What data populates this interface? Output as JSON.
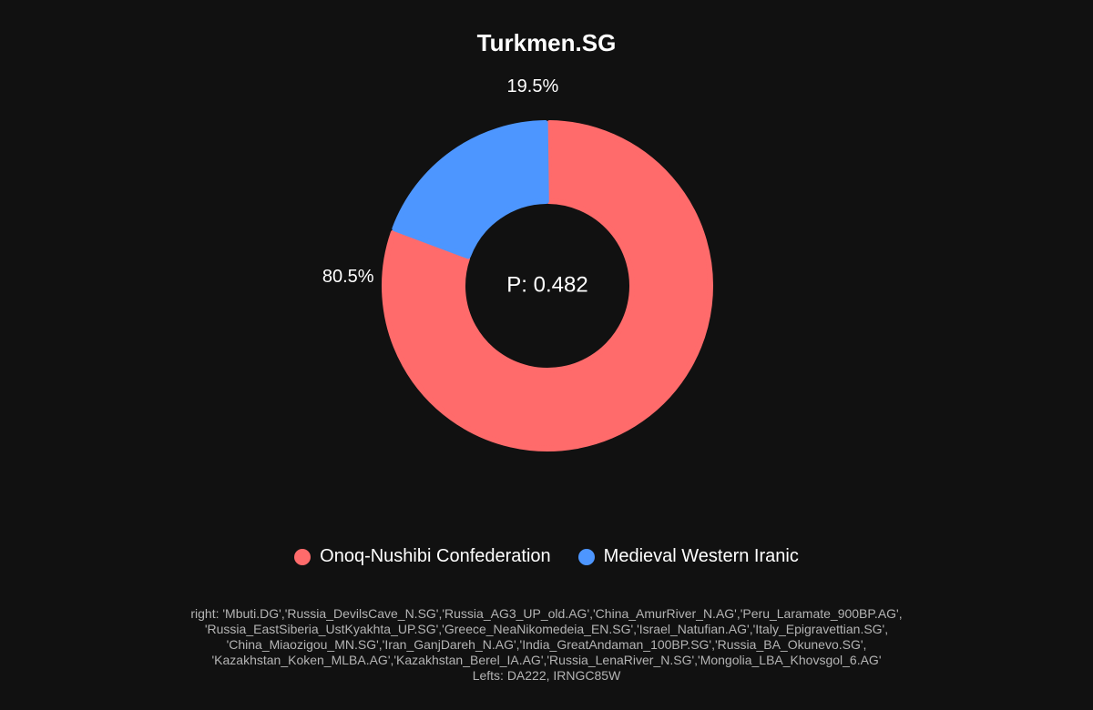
{
  "chart_data": {
    "type": "pie",
    "title": "Turkmen.SG",
    "center_label": "P: 0.482",
    "categories": [
      "Onoq-Nushibi Confederation",
      "Medieval Western Iranic"
    ],
    "values": [
      80.5,
      19.5
    ],
    "value_labels": [
      "80.5%",
      "19.5%"
    ],
    "colors": [
      "#ff6b6b",
      "#4d96ff"
    ],
    "legend_position": "bottom"
  },
  "footnote": {
    "lines": [
      "right: 'Mbuti.DG','Russia_DevilsCave_N.SG','Russia_AG3_UP_old.AG','China_AmurRiver_N.AG','Peru_Laramate_900BP.AG',",
      "'Russia_EastSiberia_UstKyakhta_UP.SG','Greece_NeaNikomedeia_EN.SG','Israel_Natufian.AG','Italy_Epigravettian.SG',",
      "'China_Miaozigou_MN.SG','Iran_GanjDareh_N.AG','India_GreatAndaman_100BP.SG','Russia_BA_Okunevo.SG',",
      "'Kazakhstan_Koken_MLBA.AG','Kazakhstan_Berel_IA.AG','Russia_LenaRiver_N.SG','Mongolia_LBA_Khovsgol_6.AG'",
      "Lefts: DA222, IRNGC85W"
    ]
  }
}
